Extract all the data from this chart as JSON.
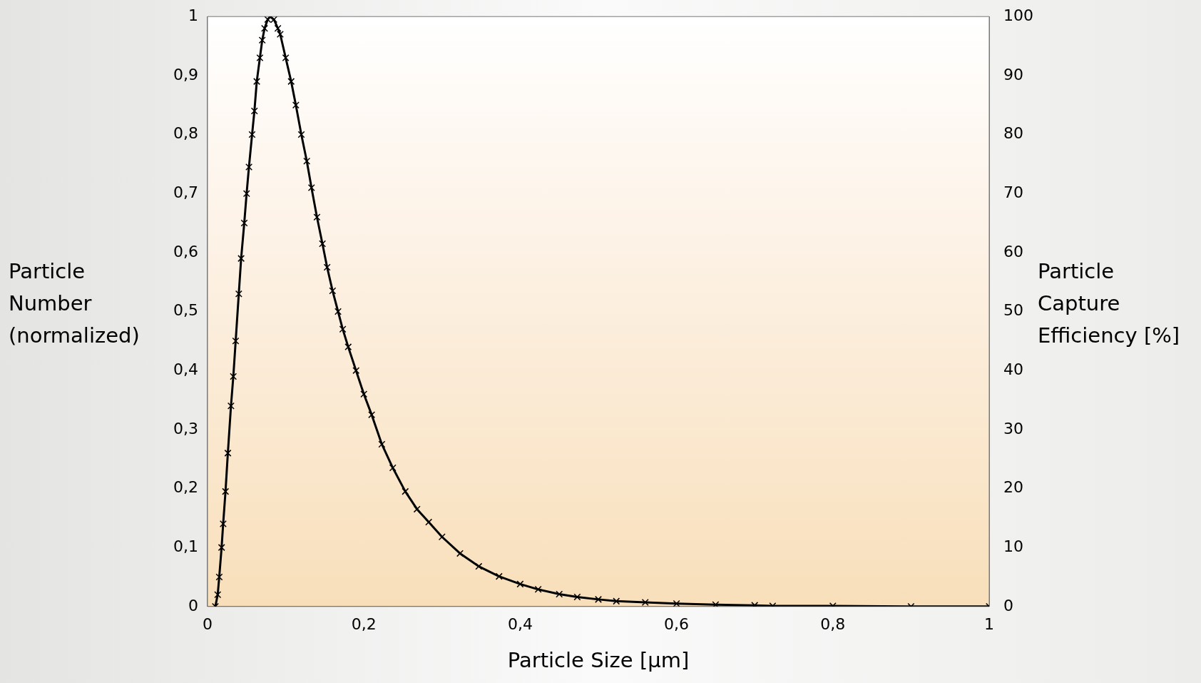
{
  "chart_data": {
    "type": "line",
    "xlabel": "Particle Size [µm]",
    "ylabel": "Particle Number (normalized)",
    "y2label": "Particle Capture Efficiency [%]",
    "series": [
      {
        "color": "#000000",
        "x": [
          0.01,
          0.013,
          0.015,
          0.018,
          0.02,
          0.023,
          0.026,
          0.03,
          0.033,
          0.036,
          0.04,
          0.043,
          0.047,
          0.05,
          0.053,
          0.057,
          0.06,
          0.063,
          0.067,
          0.07,
          0.073,
          0.077,
          0.08,
          0.085,
          0.09,
          0.093,
          0.1,
          0.107,
          0.113,
          0.12,
          0.127,
          0.133,
          0.14,
          0.147,
          0.153,
          0.16,
          0.167,
          0.173,
          0.18,
          0.19,
          0.2,
          0.21,
          0.223,
          0.237,
          0.253,
          0.268,
          0.283,
          0.3,
          0.323,
          0.347,
          0.373,
          0.4,
          0.423,
          0.45,
          0.473,
          0.5,
          0.523,
          0.56,
          0.6,
          0.65,
          0.7,
          0.723,
          0.8,
          0.9,
          1.0
        ],
        "values": [
          0,
          0.02,
          0.05,
          0.1,
          0.14,
          0.195,
          0.26,
          0.34,
          0.39,
          0.45,
          0.53,
          0.59,
          0.65,
          0.7,
          0.745,
          0.8,
          0.84,
          0.89,
          0.93,
          0.96,
          0.98,
          0.995,
          1,
          0.995,
          0.98,
          0.97,
          0.93,
          0.89,
          0.85,
          0.8,
          0.755,
          0.71,
          0.66,
          0.615,
          0.575,
          0.535,
          0.5,
          0.47,
          0.44,
          0.4,
          0.36,
          0.325,
          0.275,
          0.235,
          0.195,
          0.165,
          0.143,
          0.118,
          0.09,
          0.068,
          0.051,
          0.038,
          0.029,
          0.021,
          0.016,
          0.012,
          0.009,
          0.007,
          0.005,
          0.003,
          0.002,
          0.001,
          0.001,
          0,
          0
        ]
      }
    ],
    "xlim": [
      0,
      1
    ],
    "xticks": [
      0,
      {
        "value": 0.2,
        "label": "0,2"
      },
      {
        "value": 0.4,
        "label": "0,4"
      },
      {
        "value": 0.6,
        "label": "0,6"
      },
      {
        "value": 0.8,
        "label": "0,8"
      },
      1
    ],
    "ylim": [
      0,
      1
    ],
    "yticks": [
      0,
      {
        "value": 0.1,
        "label": "0,1"
      },
      {
        "value": 0.2,
        "label": "0,2"
      },
      {
        "value": 0.3,
        "label": "0,3"
      },
      {
        "value": 0.4,
        "label": "0,4"
      },
      {
        "value": 0.5,
        "label": "0,5"
      },
      {
        "value": 0.6,
        "label": "0,6"
      },
      {
        "value": 0.7,
        "label": "0,7"
      },
      {
        "value": 0.8,
        "label": "0,8"
      },
      {
        "value": 0.9,
        "label": "0,9"
      },
      1
    ],
    "y2lim": [
      0,
      100
    ],
    "y2ticks": [
      0,
      10,
      20,
      30,
      40,
      50,
      60,
      70,
      80,
      90,
      100
    ],
    "marker": "cross",
    "grid": false,
    "legend": false
  }
}
